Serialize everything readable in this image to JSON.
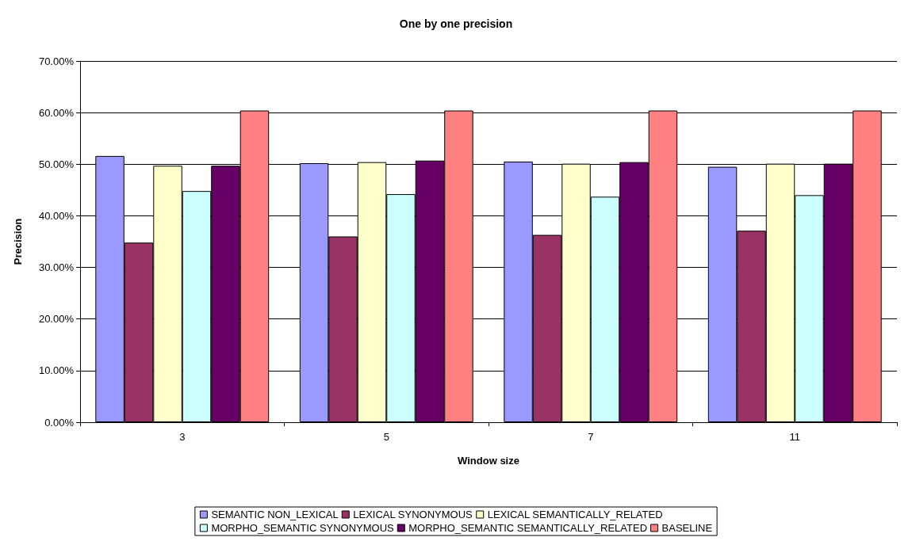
{
  "chart_data": {
    "type": "bar",
    "title": "One by one precision",
    "xlabel": "Window size",
    "ylabel": "Precision",
    "categories": [
      "3",
      "5",
      "7",
      "11"
    ],
    "series": [
      {
        "name": "SEMANTIC NON_LEXICAL",
        "color": "#9999ff",
        "values": [
          51.6,
          50.2,
          50.5,
          49.5
        ]
      },
      {
        "name": "LEXICAL SYNONYMOUS",
        "color": "#993366",
        "values": [
          34.8,
          36.0,
          36.3,
          37.1
        ]
      },
      {
        "name": "LEXICAL SEMANTICALLY_RELATED",
        "color": "#ffffcc",
        "values": [
          49.7,
          50.4,
          50.1,
          50.1
        ]
      },
      {
        "name": "MORPHO_SEMANTIC SYNONYMOUS",
        "color": "#ccffff",
        "values": [
          44.8,
          44.2,
          43.7,
          44.0
        ]
      },
      {
        "name": "MORPHO_SEMANTIC SEMANTICALLY_RELATED",
        "color": "#660066",
        "values": [
          49.7,
          50.7,
          50.4,
          50.1
        ]
      },
      {
        "name": "BASELINE",
        "color": "#ff8080",
        "values": [
          60.4,
          60.4,
          60.4,
          60.4
        ]
      }
    ],
    "ylim": [
      0,
      70
    ],
    "yticks": [
      {
        "value": 0,
        "label": "0.00%"
      },
      {
        "value": 10,
        "label": "10.00%"
      },
      {
        "value": 20,
        "label": "20.00%"
      },
      {
        "value": 30,
        "label": "30.00%"
      },
      {
        "value": 40,
        "label": "40.00%"
      },
      {
        "value": 50,
        "label": "50.00%"
      },
      {
        "value": 60,
        "label": "60.00%"
      },
      {
        "value": 70,
        "label": "70.00%"
      }
    ],
    "grid": "y",
    "legend": "bottom"
  }
}
